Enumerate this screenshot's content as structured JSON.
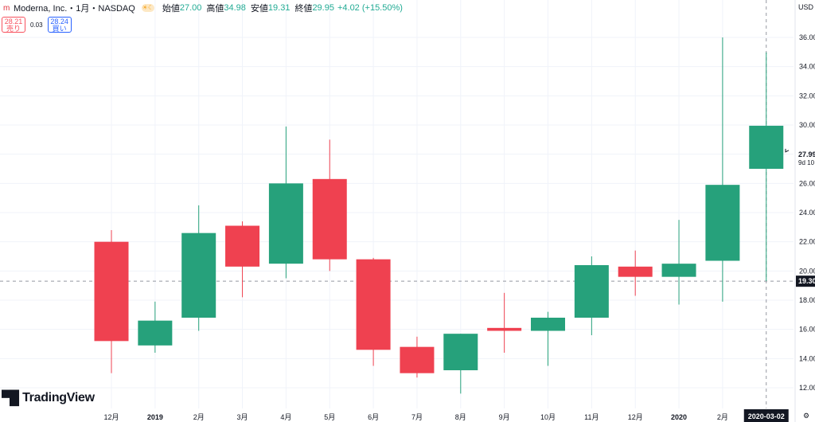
{
  "header": {
    "title": "Moderna, Inc.・1月・NASDAQ",
    "open_label": "始値",
    "open_value": "27.00",
    "high_label": "高値",
    "high_value": "34.98",
    "low_label": "安値",
    "low_value": "19.31",
    "close_label": "終値",
    "close_value": "29.95",
    "change": "+4.02 (+15.50%)"
  },
  "trade": {
    "sell_price": "28.21",
    "sell_label": "売り",
    "spread": "0.03",
    "buy_price": "28.24",
    "buy_label": "買い"
  },
  "brand": {
    "name": "TradingView"
  },
  "axis": {
    "currency": "USD",
    "crosshair_price": "19.30",
    "last_price": "27.99",
    "countdown": "9d 10",
    "crosshair_date": "2020-03-02"
  },
  "colors": {
    "up": "#26a17b",
    "down": "#ef4150",
    "text": "#131722"
  },
  "chart_data": {
    "type": "candlestick",
    "title": "Moderna, Inc.・1月・NASDAQ",
    "y_range": [
      11,
      37
    ],
    "y_ticks": [
      "12.00",
      "14.00",
      "16.00",
      "18.00",
      "20.00",
      "22.00",
      "24.00",
      "26.00",
      "28.00",
      "30.00",
      "32.00",
      "34.00",
      "36.00"
    ],
    "x_labels": [
      "12月",
      "2019",
      "2月",
      "3月",
      "4月",
      "5月",
      "6月",
      "7月",
      "8月",
      "9月",
      "10月",
      "11月",
      "12月",
      "2020",
      "2月"
    ],
    "candles": [
      {
        "label": "12月",
        "open": 22.0,
        "high": 22.8,
        "low": 13.0,
        "close": 15.2
      },
      {
        "label": "2019",
        "open": 14.9,
        "high": 17.9,
        "low": 14.4,
        "close": 16.6
      },
      {
        "label": "2月",
        "open": 16.8,
        "high": 24.5,
        "low": 15.9,
        "close": 22.6
      },
      {
        "label": "3月",
        "open": 23.1,
        "high": 23.4,
        "low": 18.2,
        "close": 20.3
      },
      {
        "label": "4月",
        "open": 20.5,
        "high": 29.9,
        "low": 19.5,
        "close": 26.0
      },
      {
        "label": "5月",
        "open": 26.3,
        "high": 29.0,
        "low": 20.0,
        "close": 20.8
      },
      {
        "label": "6月",
        "open": 20.8,
        "high": 20.9,
        "low": 13.5,
        "close": 14.6
      },
      {
        "label": "7月",
        "open": 14.8,
        "high": 15.5,
        "low": 12.7,
        "close": 13.0
      },
      {
        "label": "8月",
        "open": 13.2,
        "high": 15.7,
        "low": 11.6,
        "close": 15.7
      },
      {
        "label": "9月",
        "open": 16.1,
        "high": 18.5,
        "low": 14.4,
        "close": 15.9
      },
      {
        "label": "10月",
        "open": 15.9,
        "high": 17.2,
        "low": 13.5,
        "close": 16.8
      },
      {
        "label": "11月",
        "open": 16.8,
        "high": 21.0,
        "low": 15.6,
        "close": 20.4
      },
      {
        "label": "12月",
        "open": 20.3,
        "high": 21.4,
        "low": 18.3,
        "close": 19.6
      },
      {
        "label": "2020",
        "open": 19.6,
        "high": 23.5,
        "low": 17.7,
        "close": 20.5
      },
      {
        "label": "2月",
        "open": 20.7,
        "high": 36.0,
        "low": 17.9,
        "close": 25.9
      },
      {
        "label": "",
        "open": 27.0,
        "high": 34.98,
        "low": 19.31,
        "close": 29.95
      }
    ]
  }
}
